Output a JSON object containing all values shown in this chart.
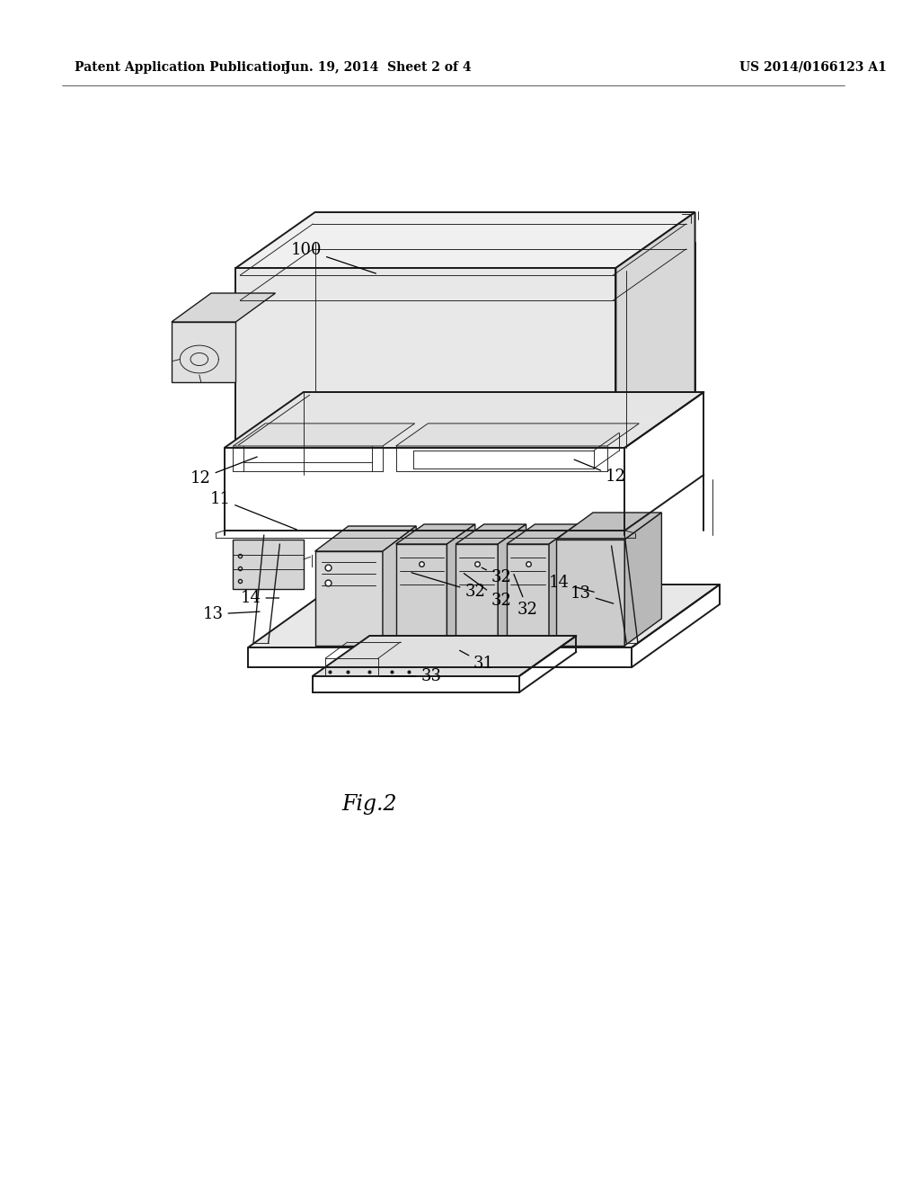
{
  "bg_color": "#ffffff",
  "header_left": "Patent Application Publication",
  "header_center": "Jun. 19, 2014  Sheet 2 of 4",
  "header_right": "US 2014/0166123 A1",
  "figure_label": "Fig.2",
  "line_color": "#1a1a1a",
  "lw_main": 1.4,
  "lw_med": 1.0,
  "lw_thin": 0.65,
  "lw_thick": 2.0
}
